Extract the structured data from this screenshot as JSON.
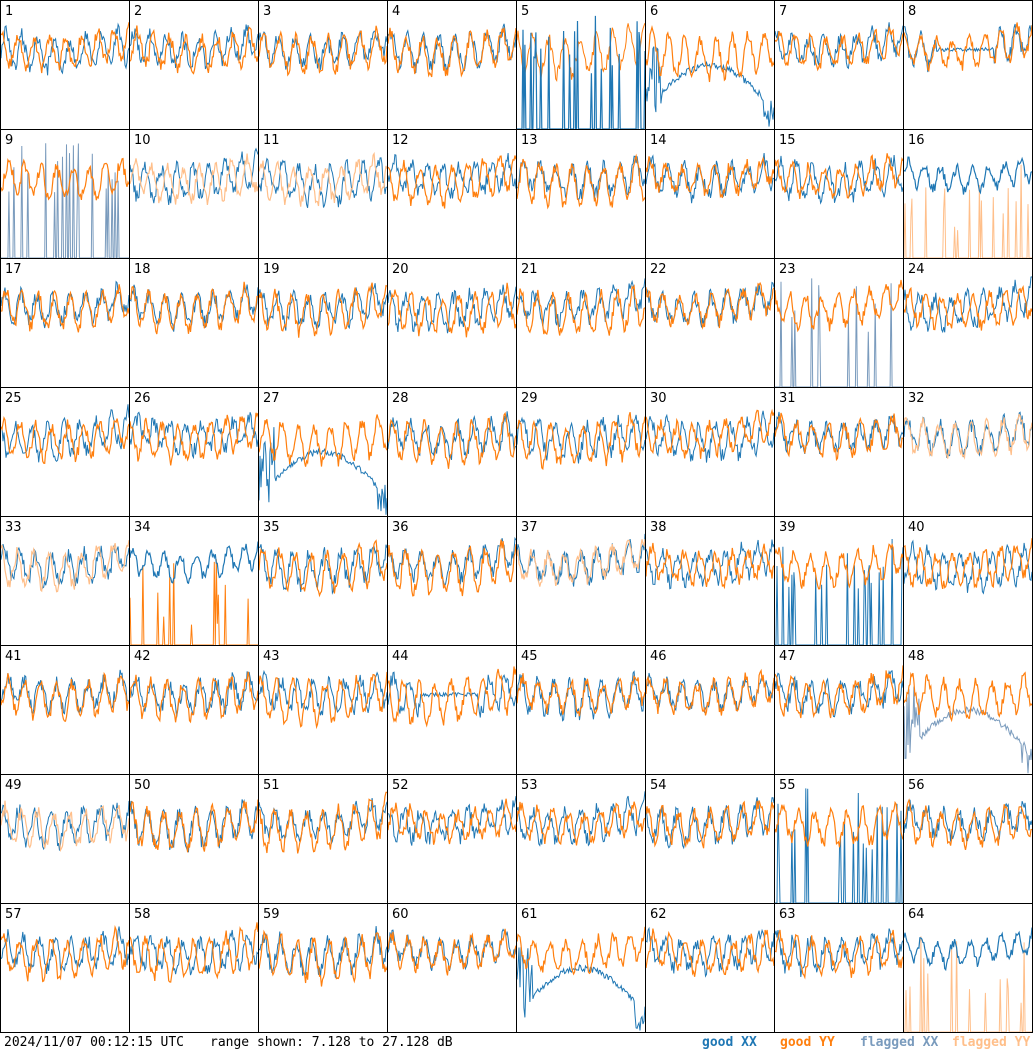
{
  "chart_data": {
    "type": "line",
    "panel_count": 64,
    "panel_labels": [
      "1",
      "2",
      "3",
      "4",
      "5",
      "6",
      "7",
      "8",
      "9",
      "10",
      "11",
      "12",
      "13",
      "14",
      "15",
      "16",
      "17",
      "18",
      "19",
      "20",
      "21",
      "22",
      "23",
      "24",
      "25",
      "26",
      "27",
      "28",
      "29",
      "30",
      "31",
      "32",
      "33",
      "34",
      "35",
      "36",
      "37",
      "38",
      "39",
      "40",
      "41",
      "42",
      "43",
      "44",
      "45",
      "46",
      "47",
      "48",
      "49",
      "50",
      "51",
      "52",
      "53",
      "54",
      "55",
      "56",
      "57",
      "58",
      "59",
      "60",
      "61",
      "62",
      "63",
      "64"
    ],
    "y_range_db": [
      7.128,
      27.128
    ],
    "grid_rows": 8,
    "grid_cols": 8,
    "series": [
      {
        "name": "good XX",
        "color": "#1f77b4"
      },
      {
        "name": "good YY",
        "color": "#ff7f0e"
      },
      {
        "name": "flagged XX",
        "color": "#7a9bbd"
      },
      {
        "name": "flagged YY",
        "color": "#ffbf8a"
      }
    ],
    "panel_status": {
      "xx_flagged": [
        9,
        23,
        48
      ],
      "yy_flagged": [
        10,
        11,
        16,
        32,
        33,
        37,
        49,
        64
      ],
      "xx_dominant": [
        5,
        16,
        34,
        64
      ],
      "xx_spiky": [
        5,
        9,
        23,
        39,
        55
      ],
      "yy_spiky": [
        16,
        34,
        64
      ],
      "xx_curve": [
        6,
        27,
        61,
        48
      ],
      "xx_flat": [
        8,
        44
      ]
    }
  },
  "footer": {
    "timestamp": "2024/11/07 00:12:15 UTC",
    "range_text": "range shown: 7.128 to 27.128 dB",
    "legend_good_xx": "good XX",
    "legend_good_yy": "good YY",
    "legend_flagged_xx": "flagged XX",
    "legend_flagged_yy": "flagged YY"
  }
}
